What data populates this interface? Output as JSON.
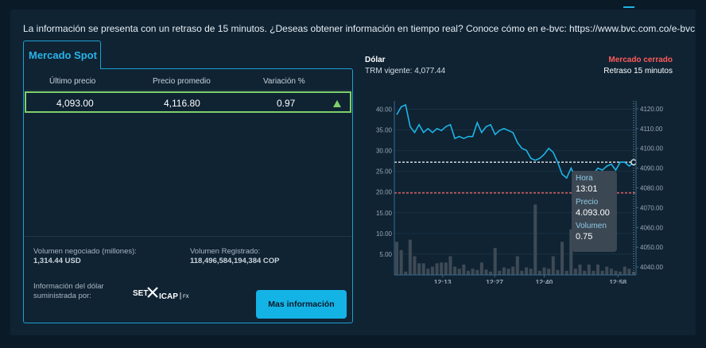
{
  "notice": "La información se presenta con un retraso de 15 minutos. ¿Deseas obtener información en tiempo real? Conoce cómo en e-bvc: https://www.bvc.com.co/e-bvc",
  "tab": {
    "label": "Mercado Spot"
  },
  "table": {
    "headers": [
      "Último precio",
      "Precio promedio",
      "Variación %"
    ],
    "row": {
      "last": "4,093.00",
      "avg": "4,116.80",
      "var": "0.97"
    }
  },
  "meta": {
    "vol_neg_label": "Volumen negociado (millones):",
    "vol_neg_value": "1,314.44 USD",
    "vol_reg_label": "Volumen Registrado:",
    "vol_reg_value": "118,496,584,194,384 COP",
    "info_label_1": "Información del dólar",
    "info_label_2": "suministrada por:",
    "logo_text_1": "SET",
    "logo_text_2": "ICAP",
    "logo_text_3": "FX"
  },
  "button": {
    "label": "Mas información"
  },
  "chart_header": {
    "title": "Dólar",
    "trm": "TRM vigente: 4,077.44",
    "status": "Mercado cerrado",
    "delay": "Retraso 15 minutos"
  },
  "colors": {
    "accent": "#1eb4e6",
    "status_closed": "#ff5a5a",
    "positive": "#7ed069"
  },
  "tooltip": {
    "hora_label": "Hora",
    "hora": "13:01",
    "precio_label": "Precio",
    "precio": "4.093.00",
    "volumen_label": "Volumen",
    "volumen": "0.75"
  },
  "chart_data": {
    "type": "line",
    "x_ticks": [
      "12:13",
      "12:27",
      "12:40",
      "12:58"
    ],
    "price_axis": {
      "ticks": [
        "4040.00",
        "4050.00",
        "4060.00",
        "4070.00",
        "4080.00",
        "4090.00",
        "4100.00",
        "4110.00",
        "4120.00"
      ],
      "range": [
        4036,
        4124
      ]
    },
    "volume_axis": {
      "ticks": [
        "5.00",
        "10.00",
        "15.00",
        "20.00",
        "25.00",
        "30.00",
        "35.00",
        "40.00"
      ],
      "range": [
        0,
        42
      ]
    },
    "reference_lines": [
      {
        "name": "Último precio",
        "value": 4093,
        "color": "#ffffff"
      },
      {
        "name": "TRM",
        "value": 4077.44,
        "color": "#ff6b6b"
      }
    ],
    "price": [
      4117,
      4121,
      4122,
      4111,
      4108,
      4112,
      4108,
      4110,
      4108,
      4110,
      4109,
      4111,
      4112,
      4105,
      4106,
      4105,
      4106,
      4106,
      4113,
      4108,
      4111,
      4112,
      4107,
      4109,
      4110,
      4109,
      4108,
      4103,
      4100,
      4099,
      4095,
      4094,
      4095,
      4097,
      4100,
      4098,
      4093,
      4087,
      4085,
      4090,
      4085,
      4084,
      4086,
      4085,
      4087,
      4090,
      4089,
      4091,
      4092,
      4089,
      4093,
      4093,
      4091,
      4093
    ],
    "volume": [
      8,
      6,
      0.8,
      8.5,
      4.5,
      2.8,
      2.8,
      1.5,
      2,
      2.8,
      3,
      3,
      4.5,
      2,
      1.5,
      2.5,
      1,
      1.5,
      1.2,
      3,
      1.3,
      0.8,
      6.5,
      1,
      1.8,
      1.5,
      2,
      4.5,
      1,
      1.8,
      1.5,
      17,
      1,
      1.8,
      1.5,
      4.5,
      1.2,
      8,
      1,
      11,
      1.5,
      2.5,
      1,
      2.5,
      1,
      2.5,
      1,
      2,
      1.5,
      1,
      0.8,
      2,
      1.5,
      0.75
    ]
  }
}
